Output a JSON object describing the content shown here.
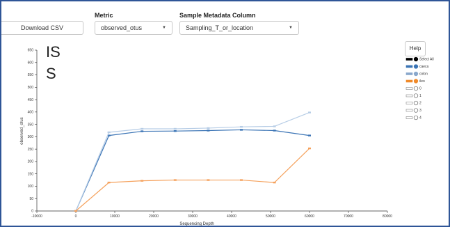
{
  "controls": {
    "download_label": "Download CSV",
    "metric_label": "Metric",
    "metric_value": "observed_otus",
    "metadata_label": "Sample Metadata Column",
    "metadata_value": "Sampling_T_or_location",
    "help_label": "Help"
  },
  "overlay": {
    "line1": "IS",
    "line2": "S"
  },
  "legend": [
    {
      "label": "Select All",
      "color": "#000000",
      "filled": true
    },
    {
      "label": "caeca",
      "color": "#3b74b5",
      "filled": true
    },
    {
      "label": "colon",
      "color": "#8aa8cc",
      "filled": true
    },
    {
      "label": "ileo",
      "color": "#f08a2b",
      "filled": true
    },
    {
      "label": "0",
      "color": "#888888",
      "filled": false
    },
    {
      "label": "1",
      "color": "#888888",
      "filled": false
    },
    {
      "label": "2",
      "color": "#888888",
      "filled": false
    },
    {
      "label": "3",
      "color": "#888888",
      "filled": false
    },
    {
      "label": "4",
      "color": "#888888",
      "filled": false
    }
  ],
  "chart_data": {
    "type": "line",
    "xlabel": "Sequencing Depth",
    "ylabel": "observed_otus",
    "xlim": [
      -10000,
      80000
    ],
    "ylim": [
      0,
      650
    ],
    "xticks": [
      -10000,
      0,
      10000,
      20000,
      30000,
      40000,
      50000,
      60000,
      70000,
      80000
    ],
    "yticks": [
      0,
      50,
      100,
      150,
      200,
      250,
      300,
      350,
      400,
      450,
      500,
      550,
      600,
      650
    ],
    "x": [
      0,
      8500,
      17000,
      25500,
      34000,
      42500,
      51000,
      60000
    ],
    "series": [
      {
        "name": "caeca",
        "color": "#3b74b5",
        "values": [
          0,
          305,
          322,
          323,
          325,
          328,
          325,
          305
        ]
      },
      {
        "name": "colon",
        "color": "#b7cde6",
        "values": [
          0,
          318,
          332,
          332,
          335,
          340,
          342,
          398
        ]
      },
      {
        "name": "ileo",
        "color": "#f5a15c",
        "values": [
          0,
          115,
          122,
          125,
          125,
          125,
          115,
          253
        ]
      }
    ],
    "grid": false
  }
}
